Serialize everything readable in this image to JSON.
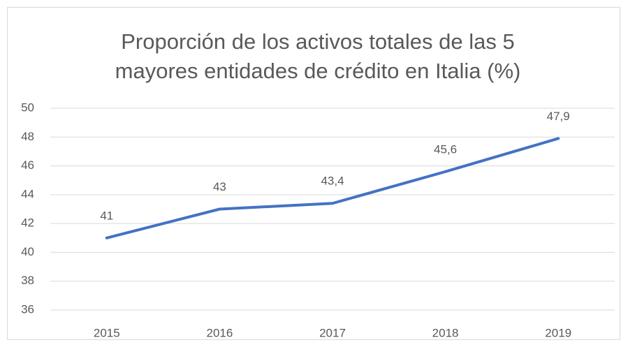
{
  "chart_data": {
    "type": "line",
    "title": [
      "Proporción de los activos totales de las 5",
      "mayores entidades de crédito en Italia (%)"
    ],
    "categories": [
      "2015",
      "2016",
      "2017",
      "2018",
      "2019"
    ],
    "values": [
      41,
      43,
      43.4,
      45.6,
      47.9
    ],
    "value_labels": [
      "41",
      "43",
      "43,4",
      "45,6",
      "47,9"
    ],
    "color": "#4472c4",
    "ylim": [
      36,
      50
    ],
    "yticks": [
      36,
      38,
      40,
      42,
      44,
      46,
      48,
      50
    ],
    "grid": true
  }
}
